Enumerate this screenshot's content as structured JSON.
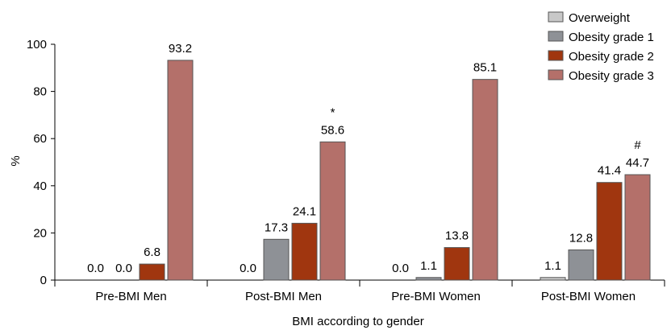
{
  "chart_data": {
    "type": "bar",
    "categories": [
      "Pre-BMI Men",
      "Post-BMI Men",
      "Pre-BMI Women",
      "Post-BMI Women"
    ],
    "series": [
      {
        "name": "Overweight",
        "values": [
          0.0,
          0.0,
          0.0,
          1.1
        ],
        "color": "#c8c8c8"
      },
      {
        "name": "Obesity grade 1",
        "values": [
          0.0,
          17.3,
          1.1,
          12.8
        ],
        "color": "#8e9196"
      },
      {
        "name": "Obesity grade 2",
        "values": [
          6.8,
          24.1,
          13.8,
          41.4
        ],
        "color": "#a0360f"
      },
      {
        "name": "Obesity grade 3",
        "values": [
          93.2,
          58.6,
          85.1,
          44.7
        ],
        "color": "#b4706a"
      }
    ],
    "data_labels": [
      [
        "0.0",
        "0.0",
        "6.8",
        "93.2"
      ],
      [
        "0.0",
        "17.3",
        "24.1",
        "58.6"
      ],
      [
        "0.0",
        "1.1",
        "13.8",
        "85.1"
      ],
      [
        "1.1",
        "12.8",
        "41.4",
        "44.7"
      ]
    ],
    "annotations": [
      {
        "category": 1,
        "series": 3,
        "text": "*"
      },
      {
        "category": 3,
        "series": 3,
        "text": "#"
      }
    ],
    "xlabel": "BMI according to gender",
    "ylabel": "%",
    "ylim": [
      0,
      100
    ],
    "yticks": [
      "0",
      "20",
      "40",
      "60",
      "80",
      "100"
    ],
    "grid": false,
    "legend_position": "top-right"
  }
}
